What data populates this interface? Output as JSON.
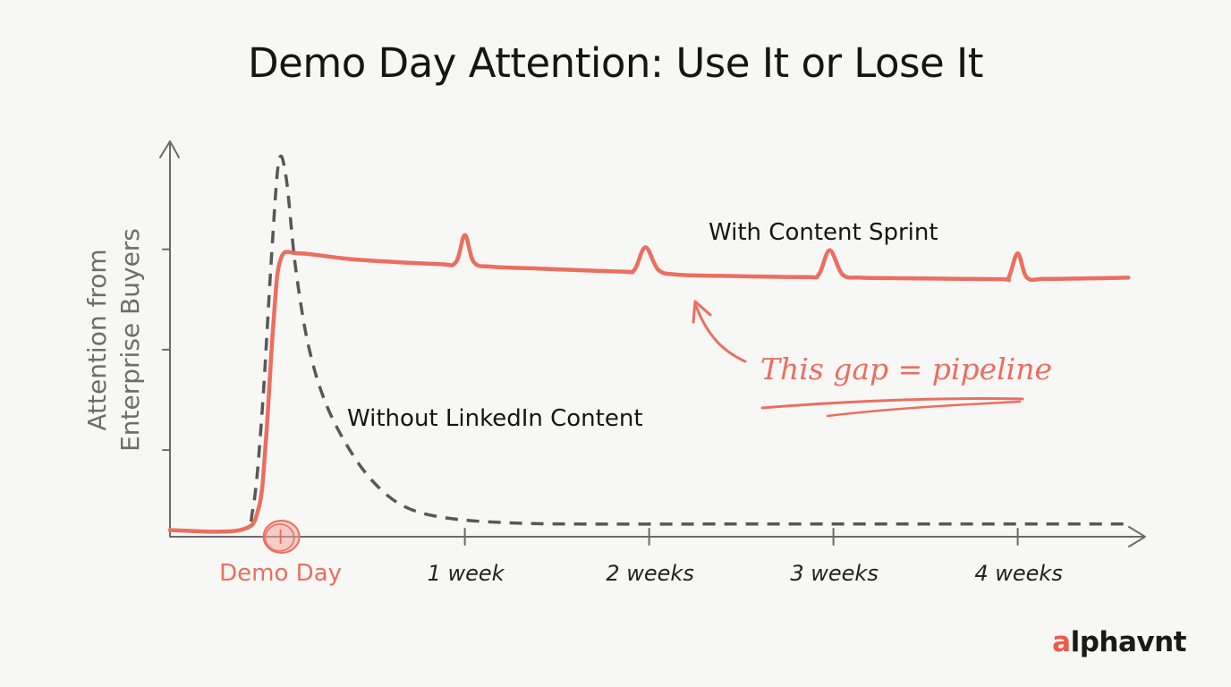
{
  "chart_data": {
    "type": "line",
    "title": "Demo Day Attention: Use It or Lose It",
    "ylabel": [
      "Attention from",
      "Enterprise Buyers"
    ],
    "x_ticks": [
      {
        "t": 0.6,
        "label": "Demo Day",
        "highlight": true
      },
      {
        "t": 1.6,
        "label": "1 week"
      },
      {
        "t": 2.6,
        "label": "2 weeks"
      },
      {
        "t": 3.6,
        "label": "3 weeks"
      },
      {
        "t": 4.6,
        "label": "4 weeks"
      }
    ],
    "xlim": [
      0,
      5.3
    ],
    "ylim": [
      0,
      1.0
    ],
    "grid": false,
    "legend": "none (inline labels)",
    "series": [
      {
        "name": "With Content Sprint",
        "color": "#ec6e5f",
        "style": "solid",
        "points": [
          [
            0,
            0.01
          ],
          [
            0.38,
            0.01
          ],
          [
            0.48,
            0.08
          ],
          [
            0.52,
            0.3
          ],
          [
            0.56,
            0.68
          ],
          [
            0.6,
            0.9
          ],
          [
            0.7,
            0.92
          ],
          [
            1.0,
            0.9
          ],
          [
            1.45,
            0.885
          ],
          [
            1.55,
            0.89
          ],
          [
            1.6,
            0.98
          ],
          [
            1.65,
            0.89
          ],
          [
            1.75,
            0.876
          ],
          [
            2.0,
            0.87
          ],
          [
            2.45,
            0.86
          ],
          [
            2.52,
            0.866
          ],
          [
            2.58,
            0.94
          ],
          [
            2.65,
            0.866
          ],
          [
            2.75,
            0.85
          ],
          [
            3.0,
            0.846
          ],
          [
            3.45,
            0.842
          ],
          [
            3.52,
            0.85
          ],
          [
            3.58,
            0.93
          ],
          [
            3.65,
            0.85
          ],
          [
            3.75,
            0.84
          ],
          [
            4.0,
            0.838
          ],
          [
            4.5,
            0.835
          ],
          [
            4.55,
            0.84
          ],
          [
            4.6,
            0.92
          ],
          [
            4.65,
            0.84
          ],
          [
            4.75,
            0.836
          ],
          [
            5.0,
            0.838
          ],
          [
            5.2,
            0.84
          ]
        ]
      },
      {
        "name": "Without LinkedIn Content",
        "color": "#575757",
        "style": "dashed",
        "points": [
          [
            0,
            0.01
          ],
          [
            0.38,
            0.01
          ],
          [
            0.45,
            0.08
          ],
          [
            0.5,
            0.4
          ],
          [
            0.55,
            0.9
          ],
          [
            0.59,
            1.22
          ],
          [
            0.63,
            1.17
          ],
          [
            0.68,
            0.88
          ],
          [
            0.75,
            0.62
          ],
          [
            0.85,
            0.42
          ],
          [
            1.0,
            0.25
          ],
          [
            1.15,
            0.14
          ],
          [
            1.3,
            0.08
          ],
          [
            1.5,
            0.05
          ],
          [
            1.8,
            0.035
          ],
          [
            2.2,
            0.03
          ],
          [
            3.0,
            0.03
          ],
          [
            4.0,
            0.03
          ],
          [
            5.0,
            0.03
          ],
          [
            5.2,
            0.03
          ]
        ]
      }
    ],
    "annotations": [
      {
        "text": "This gap = pipeline",
        "color": "#ec6e5f"
      }
    ]
  },
  "brand": {
    "prefix": "a",
    "rest": "lphavnt"
  }
}
